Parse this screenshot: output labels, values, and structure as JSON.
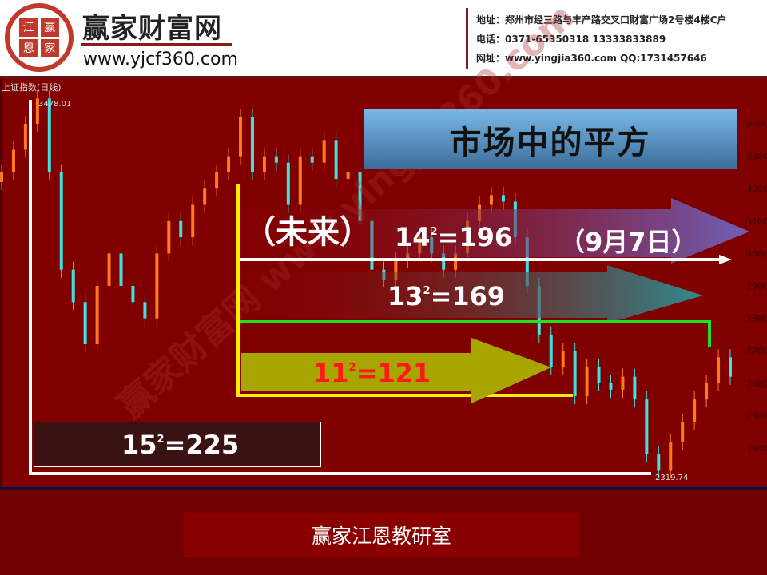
{
  "header": {
    "logo_seal": [
      "江",
      "赢",
      "恩",
      "家"
    ],
    "brand_name": "赢家财富网",
    "brand_url": "www.yjcf360.com",
    "address": "地址：郑州市经三路与丰产路交叉口财富广场2号楼4楼C户",
    "phone": "电话：0371-65350318  13333833889",
    "website": "网址：www.yingjia360.com  QQ:1731457646"
  },
  "watermark": "赢家财富网 www.yingjia360.com",
  "slide": {
    "title": "市场中的平方",
    "future_label": "（未来）",
    "date_label": "（9月7日）",
    "sq14": {
      "base": "14",
      "exp": "2",
      "result": "=196"
    },
    "sq13": {
      "base": "13",
      "exp": "2",
      "result": "=169"
    },
    "sq11": {
      "base": "11",
      "exp": "2",
      "result": "=121"
    },
    "sq15": {
      "base": "15",
      "exp": "2",
      "result": "=225"
    },
    "footer": "赢家江恩教研室"
  },
  "colors": {
    "background": "#800000",
    "up": "#ff7a1a",
    "down": "#40e0e0",
    "arrow14": "#7060b8",
    "arrow13": "#2f8c90",
    "arrow11": "#a8a400",
    "green_line": "#22e022",
    "yellow_line": "#ffee00"
  },
  "chart_data": {
    "type": "candlestick",
    "title": "上证指数(日线)",
    "ylim": [
      2300,
      3480
    ],
    "yticks": [
      "3400",
      "3300",
      "3200",
      "3100",
      "3000",
      "2900",
      "2800",
      "2700",
      "2600",
      "2500",
      "2400"
    ],
    "annotations": {
      "high": "3478.01",
      "low": "2319.74"
    },
    "closes": [
      3250,
      3320,
      3400,
      3478,
      3250,
      2950,
      2850,
      2720,
      2900,
      3000,
      2900,
      2850,
      2800,
      3000,
      3100,
      3050,
      3150,
      3200,
      3250,
      3300,
      3420,
      3250,
      3300,
      3280,
      3150,
      3300,
      3280,
      3350,
      3230,
      3250,
      3100,
      2950,
      2920,
      2980,
      3000,
      3050,
      3000,
      2950,
      3000,
      3100,
      3150,
      3180,
      3160,
      3050,
      2900,
      2750,
      2650,
      2700,
      2560,
      2650,
      2600,
      2580,
      2620,
      2550,
      2380,
      2330,
      2420,
      2480,
      2550,
      2600,
      2680,
      2620
    ]
  }
}
